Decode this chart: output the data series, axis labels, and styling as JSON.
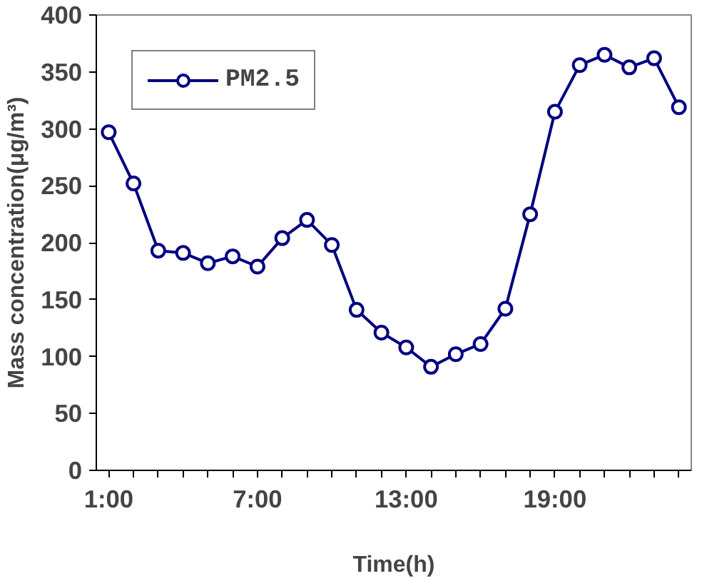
{
  "chart_data": {
    "type": "line",
    "xlabel": "Time(h)",
    "ylabel": "Mass concentration(μg/m³)",
    "categories": [
      "1:00",
      null,
      null,
      null,
      null,
      null,
      "7:00",
      null,
      null,
      null,
      null,
      null,
      "13:00",
      null,
      null,
      null,
      null,
      null,
      "19:00",
      null,
      null,
      null,
      null,
      null
    ],
    "series": [
      {
        "name": "PM2.5",
        "color": "#000080",
        "values": [
          297,
          252,
          193,
          191,
          182,
          188,
          179,
          204,
          220,
          198,
          141,
          121,
          108,
          91,
          102,
          111,
          142,
          225,
          315,
          356,
          365,
          354,
          362,
          319
        ]
      }
    ],
    "ylim": [
      0,
      400
    ],
    "yticks": [
      0,
      50,
      100,
      150,
      200,
      250,
      300,
      350,
      400
    ],
    "grid": false,
    "legend": "top left",
    "marker": "circle",
    "line_style": "solid"
  }
}
